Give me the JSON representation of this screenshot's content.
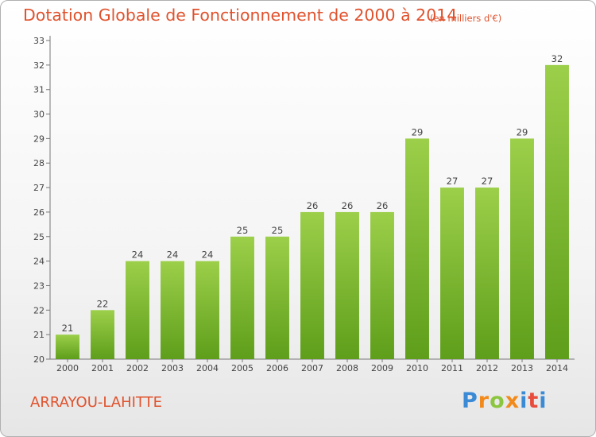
{
  "title": "Dotation Globale de Fonctionnement de 2000 à 2014",
  "unit_note": "(en milliers d'€)",
  "commune": "ARRAYOU-LAHITTE",
  "logo": {
    "text": "Proxiti",
    "letters": [
      "P",
      "r",
      "o",
      "x",
      "i",
      "t",
      "i"
    ]
  },
  "colors": {
    "accent": "#e0522d",
    "bar_top": "#9ccf4a",
    "bar_bottom": "#5e9e1a"
  },
  "chart_data": {
    "type": "bar",
    "title": "Dotation Globale de Fonctionnement de 2000 à 2014",
    "subtitle": "(en milliers d'€)",
    "categories": [
      "2000",
      "2001",
      "2002",
      "2003",
      "2004",
      "2005",
      "2006",
      "2007",
      "2008",
      "2009",
      "2010",
      "2011",
      "2012",
      "2013",
      "2014"
    ],
    "values": [
      21,
      22,
      24,
      24,
      24,
      25,
      25,
      26,
      26,
      26,
      29,
      27,
      27,
      29,
      32
    ],
    "data_labels": [
      "21",
      "22",
      "24",
      "24",
      "24",
      "25",
      "25",
      "26",
      "26",
      "26",
      "29",
      "27",
      "27",
      "29",
      "32"
    ],
    "y_ticks": [
      20,
      21,
      22,
      23,
      24,
      25,
      26,
      27,
      28,
      29,
      30,
      31,
      32,
      33
    ],
    "ylim": [
      20,
      33
    ],
    "xlabel": "",
    "ylabel": "",
    "grid": false,
    "legend": "none"
  }
}
